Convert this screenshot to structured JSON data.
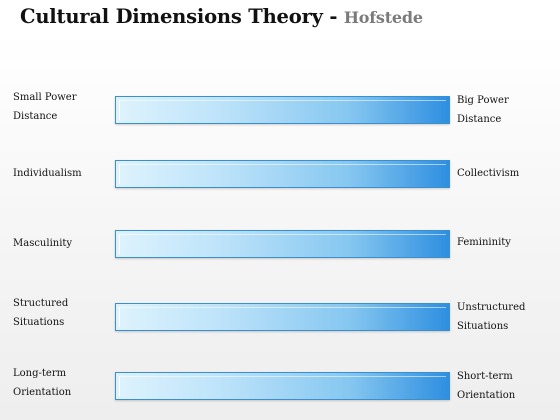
{
  "title": {
    "main": "Cultural Dimensions Theory - ",
    "sub": "Hofstede"
  },
  "colors": {
    "bar_light": "#def3fd",
    "bar_dark": "#2e8fe0",
    "bar_border": "#3a8fd0",
    "subtitle": "#7a7a7a"
  },
  "dimensions": [
    {
      "left": [
        "Small Power",
        "Distance"
      ],
      "right": [
        "Big Power",
        "Distance"
      ]
    },
    {
      "left": [
        "Individualism"
      ],
      "right": [
        "Collectivism"
      ]
    },
    {
      "left": [
        "Masculinity"
      ],
      "right": [
        "Femininity"
      ]
    },
    {
      "left": [
        "Structured",
        "Situations"
      ],
      "right": [
        "Unstructured",
        "Situations"
      ]
    },
    {
      "left": [
        "Long-term",
        "Orientation"
      ],
      "right": [
        "Short-term",
        "Orientation"
      ]
    }
  ]
}
